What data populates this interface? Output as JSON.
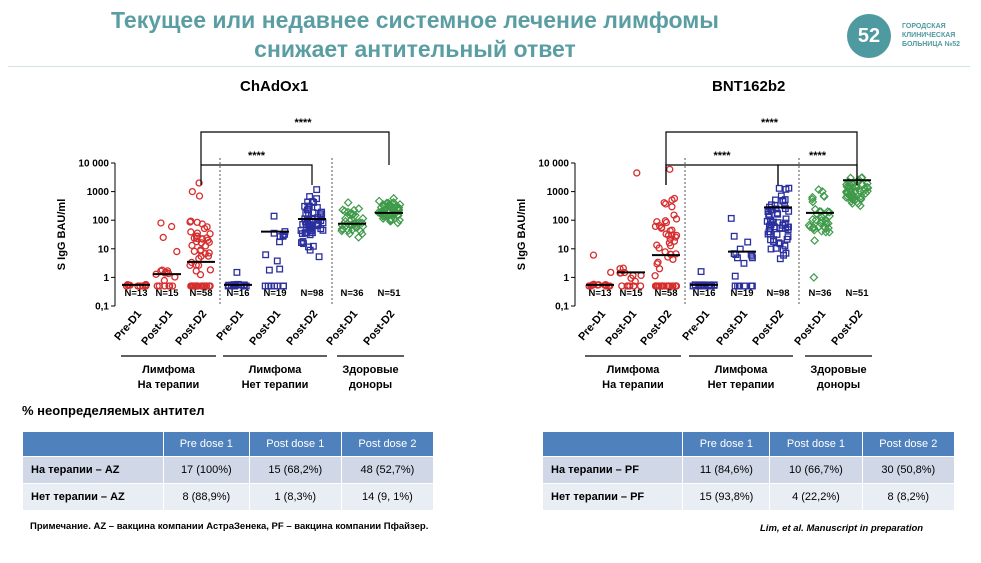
{
  "header": {
    "title_line1": "Текущее или недавнее системное лечение лимфомы",
    "title_line2": "снижает антительный ответ",
    "logo_mark": "52",
    "logo_text": "ГОРОДСКАЯ\nКЛИНИЧЕСКАЯ\nБОЛЬНИЦА №52"
  },
  "colors": {
    "title": "#5a9ea4",
    "red": "#d62d2d",
    "blue": "#2b2f9e",
    "green": "#3f9a4a",
    "table_header": "#4f81bd"
  },
  "chart_data": [
    {
      "type": "scatter",
      "title": "ChAdOx1",
      "ylabel": "S IgG BAU/ml",
      "yscale": "log",
      "ylim": [
        0.1,
        10000
      ],
      "yticks": [
        "0,1",
        "1",
        "10",
        "100",
        "1000",
        "10 000"
      ],
      "groups": [
        {
          "label": "Pre-D1",
          "n": "N=13",
          "median": 0.55,
          "color": "red",
          "marker": "circle",
          "spread": [
            0.5,
            0.6
          ],
          "extra": []
        },
        {
          "label": "Post-D1",
          "n": "N=15",
          "median": 1.3,
          "color": "red",
          "marker": "circle",
          "spread": [
            0.5,
            3
          ],
          "extra": [
            80,
            60,
            25,
            8
          ]
        },
        {
          "label": "Post-D2",
          "n": "N=58",
          "median": 3.5,
          "color": "red",
          "marker": "circle",
          "spread": [
            0.5,
            400
          ],
          "extra": [
            2000,
            1000,
            700
          ]
        },
        {
          "label": "Pre-D1",
          "n": "N=16",
          "median": 0.55,
          "color": "blue",
          "marker": "square",
          "spread": [
            0.5,
            0.6
          ],
          "extra": [
            1.5
          ]
        },
        {
          "label": "Post-D1",
          "n": "N=19",
          "median": 40,
          "color": "blue",
          "marker": "square",
          "spread": [
            0.5,
            400
          ],
          "extra": []
        },
        {
          "label": "Post-D2",
          "n": "N=98",
          "median": 110,
          "color": "blue",
          "marker": "square",
          "spread": [
            3,
            3000
          ],
          "extra": []
        },
        {
          "label": "Post-D1",
          "n": "N=36",
          "median": 75,
          "color": "green",
          "marker": "diamond",
          "spread": [
            12,
            600
          ],
          "extra": []
        },
        {
          "label": "Post-D2",
          "n": "N=51",
          "median": 180,
          "color": "green",
          "marker": "diamond",
          "spread": [
            60,
            800
          ],
          "extra": []
        }
      ],
      "group_labels": [
        "Лимфома\nНа терапии",
        "Лимфома\nНет терапии",
        "Здоровые\nдоноры"
      ],
      "significance": [
        {
          "label": "****",
          "from": 2,
          "to": 5
        },
        {
          "label": "****",
          "from": 2,
          "to": 7
        }
      ]
    },
    {
      "type": "scatter",
      "title": "BNT162b2",
      "ylabel": "S IgG BAU/ml",
      "yscale": "log",
      "ylim": [
        0.1,
        10000
      ],
      "yticks": [
        "0,1",
        "1",
        "10",
        "100",
        "1000",
        "10 000"
      ],
      "groups": [
        {
          "label": "Pre-D1",
          "n": "N=13",
          "median": 0.55,
          "color": "red",
          "marker": "circle",
          "spread": [
            0.5,
            0.6
          ],
          "extra": [
            1.5,
            6
          ]
        },
        {
          "label": "Post-D1",
          "n": "N=15",
          "median": 1.5,
          "color": "red",
          "marker": "circle",
          "spread": [
            0.5,
            3
          ],
          "extra": [
            4500
          ]
        },
        {
          "label": "Post-D2",
          "n": "N=58",
          "median": 6,
          "color": "red",
          "marker": "circle",
          "spread": [
            0.5,
            1500
          ],
          "extra": [
            6000
          ]
        },
        {
          "label": "Pre-D1",
          "n": "N=16",
          "median": 0.55,
          "color": "blue",
          "marker": "square",
          "spread": [
            0.5,
            0.6
          ],
          "extra": [
            1.6
          ]
        },
        {
          "label": "Post-D1",
          "n": "N=19",
          "median": 8,
          "color": "blue",
          "marker": "square",
          "spread": [
            0.5,
            150
          ],
          "extra": []
        },
        {
          "label": "Post-D2",
          "n": "N=98",
          "median": 280,
          "color": "blue",
          "marker": "square",
          "spread": [
            1,
            6000
          ],
          "extra": []
        },
        {
          "label": "Post-D1",
          "n": "N=36",
          "median": 180,
          "color": "green",
          "marker": "diamond",
          "spread": [
            5,
            2000
          ],
          "extra": [
            1
          ]
        },
        {
          "label": "Post-D2",
          "n": "N=51",
          "median": 2500,
          "color": "green",
          "marker": "diamond",
          "spread": [
            150,
            7000
          ],
          "extra": []
        }
      ],
      "group_labels": [
        "Лимфома\nНа терапии",
        "Лимфома\nНет терапии",
        "Здоровые\nдоноры"
      ],
      "significance": [
        {
          "label": "****",
          "from": 2,
          "to": 5
        },
        {
          "label": "****",
          "from": 5,
          "to": 7
        },
        {
          "label": "****",
          "from": 2,
          "to": 7
        }
      ]
    }
  ],
  "undetectable_title": "% неопределяемых антител",
  "tables": [
    {
      "headers": [
        "",
        "Pre dose 1",
        "Post dose 1",
        "Post dose 2"
      ],
      "rows": [
        [
          "На терапии – AZ",
          "17 (100%)",
          "15 (68,2%)",
          "48 (52,7%)"
        ],
        [
          "Нет терапии – AZ",
          "8 (88,9%)",
          "1 (8,3%)",
          "14 (9, 1%)"
        ]
      ]
    },
    {
      "headers": [
        "",
        "Pre dose 1",
        "Post dose 1",
        "Post dose 2"
      ],
      "rows": [
        [
          "На терапии – PF",
          "11 (84,6%)",
          "10 (66,7%)",
          "30 (50,8%)"
        ],
        [
          "Нет терапии – PF",
          "15 (93,8%)",
          "4 (22,2%)",
          "8 (8,2%)"
        ]
      ]
    }
  ],
  "footnote": "Примечание. AZ – вакцина компании АстраЗенека, PF – вакцина компании Пфайзер.",
  "reference": "Lim, et al. Manuscript in preparation"
}
